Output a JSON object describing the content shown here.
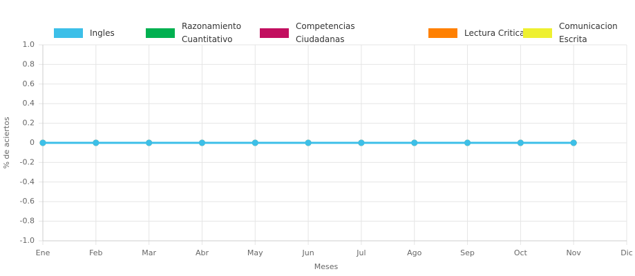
{
  "chart_data": {
    "type": "line",
    "xlabel": "Meses",
    "ylabel": "% de aciertos",
    "categories": [
      "Ene",
      "Feb",
      "Mar",
      "Abr",
      "May",
      "Jun",
      "Jul",
      "Ago",
      "Sep",
      "Oct",
      "Nov",
      "Dic"
    ],
    "series": [
      {
        "name": "Ingles",
        "color": "#3cbfe8",
        "values": [
          0,
          0,
          0,
          0,
          0,
          0,
          0,
          0,
          0,
          0,
          0,
          null
        ]
      },
      {
        "name": "Razonamiento Cuantitativo",
        "color": "#00b050",
        "values": [
          0,
          0,
          0,
          0,
          0,
          0,
          0,
          0,
          0,
          0,
          0,
          null
        ]
      },
      {
        "name": "Competencias Ciudadanas",
        "color": "#c20f5f",
        "values": [
          0,
          0,
          0,
          0,
          0,
          0,
          0,
          0,
          0,
          0,
          0,
          null
        ]
      },
      {
        "name": "Lectura Critica",
        "color": "#ff8000",
        "values": [
          0,
          0,
          0,
          0,
          0,
          0,
          0,
          0,
          0,
          0,
          0,
          null
        ]
      },
      {
        "name": "Comunicacion Escrita",
        "color": "#eef030",
        "values": [
          0,
          0,
          0,
          0,
          0,
          0,
          0,
          0,
          0,
          0,
          0,
          null
        ]
      }
    ],
    "ylim": [
      -1,
      1
    ],
    "yticks": [
      {
        "value": 1,
        "label": "1.0"
      },
      0.8,
      0.6,
      0.4,
      0.2,
      0,
      -0.2,
      -0.4,
      -0.6,
      -0.8,
      {
        "value": -1,
        "label": "-1.0"
      }
    ],
    "grid": true,
    "legend": "top"
  }
}
